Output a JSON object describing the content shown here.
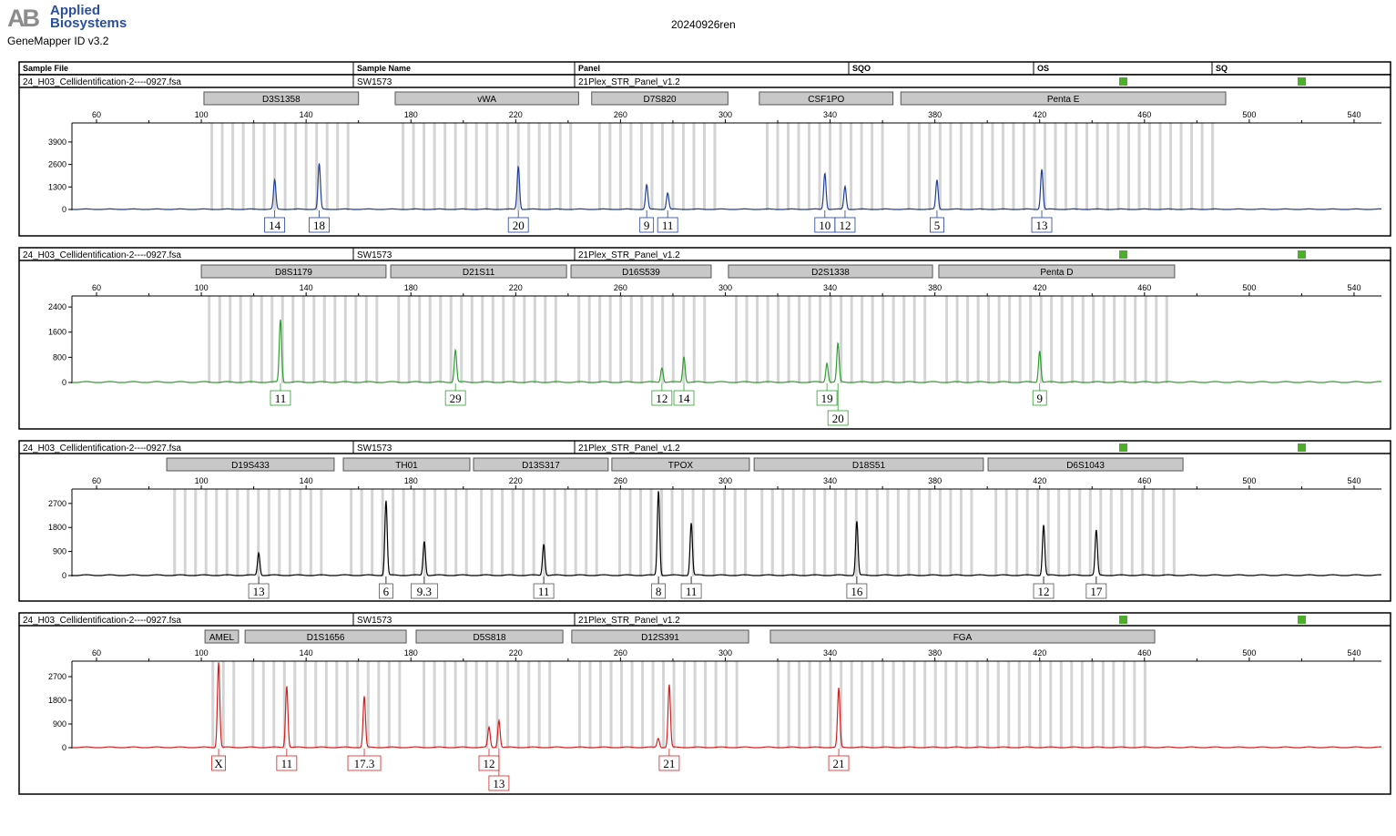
{
  "header": {
    "logo": "Applied Biosystems",
    "app_version": "GeneMapper ID v3.2",
    "title": "20240926ren",
    "columns": [
      "Sample File",
      "Sample Name",
      "Panel",
      "SQO",
      "OS",
      "SQ"
    ]
  },
  "colors": {
    "blue": "#1f3f99",
    "green": "#2ca02c",
    "black": "#000000",
    "red": "#d62020",
    "quality_ok": "#4caf2a",
    "bin": "#d4d4d4",
    "marker": "#c8c8c8"
  },
  "chart_data": [
    {
      "type": "line",
      "dye": "blue",
      "color": "#1f3f99",
      "sample_file": "24_H03_Cellidentification-2----0927.fsa",
      "sample_name": "SW1573",
      "panel": "21Plex_STR_Panel_v1.2",
      "quality": [
        "ok",
        "ok"
      ],
      "xlim": [
        50,
        550
      ],
      "xticks": [
        60,
        100,
        140,
        180,
        220,
        260,
        300,
        340,
        380,
        420,
        460,
        500,
        540
      ],
      "ylim": [
        0,
        5000
      ],
      "yticks": [
        0,
        1300,
        2600,
        3900
      ],
      "markers": [
        {
          "name": "D3S1358",
          "range": [
            101,
            160
          ]
        },
        {
          "name": "vWA",
          "range": [
            174,
            244
          ]
        },
        {
          "name": "D7S820",
          "range": [
            249,
            301
          ]
        },
        {
          "name": "CSF1PO",
          "range": [
            313,
            364
          ]
        },
        {
          "name": "Penta E",
          "range": [
            367,
            491
          ]
        }
      ],
      "peaks": [
        {
          "size": 128,
          "height": 1690,
          "allele": "14"
        },
        {
          "size": 145,
          "height": 2640,
          "allele": "18"
        },
        {
          "size": 221,
          "height": 2480,
          "allele": "20"
        },
        {
          "size": 270,
          "height": 1420,
          "allele": "9"
        },
        {
          "size": 278,
          "height": 950,
          "allele": "11"
        },
        {
          "size": 338,
          "height": 2100,
          "allele": "10"
        },
        {
          "size": 345.7,
          "height": 1320,
          "allele": "12"
        },
        {
          "size": 380.8,
          "height": 1690,
          "allele": "5"
        },
        {
          "size": 420.8,
          "height": 2320,
          "allele": "13"
        }
      ]
    },
    {
      "type": "line",
      "dye": "green",
      "color": "#2ca02c",
      "sample_file": "24_H03_Cellidentification-2----0927.fsa",
      "sample_name": "SW1573",
      "panel": "21Plex_STR_Panel_v1.2",
      "quality": [
        "ok",
        "ok"
      ],
      "xlim": [
        50,
        550
      ],
      "xticks": [
        60,
        100,
        140,
        180,
        220,
        260,
        300,
        340,
        380,
        420,
        460,
        500,
        540
      ],
      "ylim": [
        0,
        2750
      ],
      "yticks": [
        0,
        800,
        1600,
        2400
      ],
      "markers": [
        {
          "name": "D8S1179",
          "range": [
            100,
            170.5
          ]
        },
        {
          "name": "D21S11",
          "range": [
            172.3,
            239.4
          ]
        },
        {
          "name": "D16S539",
          "range": [
            241.1,
            294.6
          ]
        },
        {
          "name": "D2S1338",
          "range": [
            301.2,
            379.1
          ]
        },
        {
          "name": "Penta D",
          "range": [
            381.5,
            471.5
          ]
        }
      ],
      "peaks": [
        {
          "size": 130.2,
          "height": 1990,
          "allele": "11"
        },
        {
          "size": 197,
          "height": 1025,
          "allele": "29"
        },
        {
          "size": 275.8,
          "height": 470,
          "allele": "12"
        },
        {
          "size": 284.2,
          "height": 820,
          "allele": "14"
        },
        {
          "size": 338.8,
          "height": 615,
          "allele": "19"
        },
        {
          "size": 343,
          "height": 1230,
          "allele": "20",
          "row": 2
        },
        {
          "size": 420,
          "height": 1000,
          "allele": "9"
        }
      ]
    },
    {
      "type": "line",
      "dye": "black",
      "color": "#000000",
      "sample_file": "24_H03_Cellidentification-2----0927.fsa",
      "sample_name": "SW1573",
      "panel": "21Plex_STR_Panel_v1.2",
      "quality": [
        "ok",
        "ok"
      ],
      "xlim": [
        50,
        550
      ],
      "xticks": [
        60,
        100,
        140,
        180,
        220,
        260,
        300,
        340,
        380,
        420,
        460,
        500,
        540
      ],
      "ylim": [
        0,
        3240
      ],
      "yticks": [
        0,
        900,
        1800,
        2700
      ],
      "markers": [
        {
          "name": "D19S433",
          "range": [
            86.8,
            150.7
          ]
        },
        {
          "name": "TH01",
          "range": [
            154.2,
            202.5
          ]
        },
        {
          "name": "D13S317",
          "range": [
            203.9,
            255.3
          ]
        },
        {
          "name": "TPOX",
          "range": [
            256.7,
            309.2
          ]
        },
        {
          "name": "D18S51",
          "range": [
            311,
            398.5
          ]
        },
        {
          "name": "D6S1043",
          "range": [
            400.3,
            474.7
          ]
        }
      ],
      "peaks": [
        {
          "size": 121.9,
          "height": 845,
          "allele": "13"
        },
        {
          "size": 170.5,
          "height": 2800,
          "allele": "6"
        },
        {
          "size": 185.1,
          "height": 1280,
          "allele": "9.3"
        },
        {
          "size": 230.7,
          "height": 1180,
          "allele": "11"
        },
        {
          "size": 274.5,
          "height": 3170,
          "allele": "8"
        },
        {
          "size": 287,
          "height": 1960,
          "allele": "11"
        },
        {
          "size": 350.2,
          "height": 2025,
          "allele": "16"
        },
        {
          "size": 421.5,
          "height": 1890,
          "allele": "12"
        },
        {
          "size": 441.6,
          "height": 1690,
          "allele": "17"
        }
      ]
    },
    {
      "type": "line",
      "dye": "red",
      "color": "#d62020",
      "sample_file": "24_H03_Cellidentification-2----0927.fsa",
      "sample_name": "SW1573",
      "panel": "21Plex_STR_Panel_v1.2",
      "quality": [
        "ok",
        "ok"
      ],
      "xlim": [
        50,
        550
      ],
      "xticks": [
        60,
        100,
        140,
        180,
        220,
        260,
        300,
        340,
        380,
        420,
        460,
        500,
        540
      ],
      "ylim": [
        0,
        3290
      ],
      "yticks": [
        0,
        900,
        1800,
        2700
      ],
      "markers": [
        {
          "name": "AMEL",
          "range": [
            101.4,
            114.2
          ]
        },
        {
          "name": "D1S1656",
          "range": [
            116.7,
            178.2
          ]
        },
        {
          "name": "D5S818",
          "range": [
            182,
            238
          ]
        },
        {
          "name": "D12S391",
          "range": [
            241.4,
            308.9
          ]
        },
        {
          "name": "FGA",
          "range": [
            317.2,
            463.9
          ]
        }
      ],
      "peaks": [
        {
          "size": 106.6,
          "height": 3250,
          "allele": "X"
        },
        {
          "size": 132.6,
          "height": 2350,
          "allele": "11"
        },
        {
          "size": 162.2,
          "height": 1940,
          "allele": "17.3"
        },
        {
          "size": 209.8,
          "height": 760,
          "allele": "12"
        },
        {
          "size": 213.6,
          "height": 1040,
          "allele": "13",
          "row": 2
        },
        {
          "size": 274.4,
          "height": 350
        },
        {
          "size": 278.6,
          "height": 2390,
          "allele": "21"
        },
        {
          "size": 343.3,
          "height": 2250,
          "allele": "21"
        }
      ]
    }
  ]
}
